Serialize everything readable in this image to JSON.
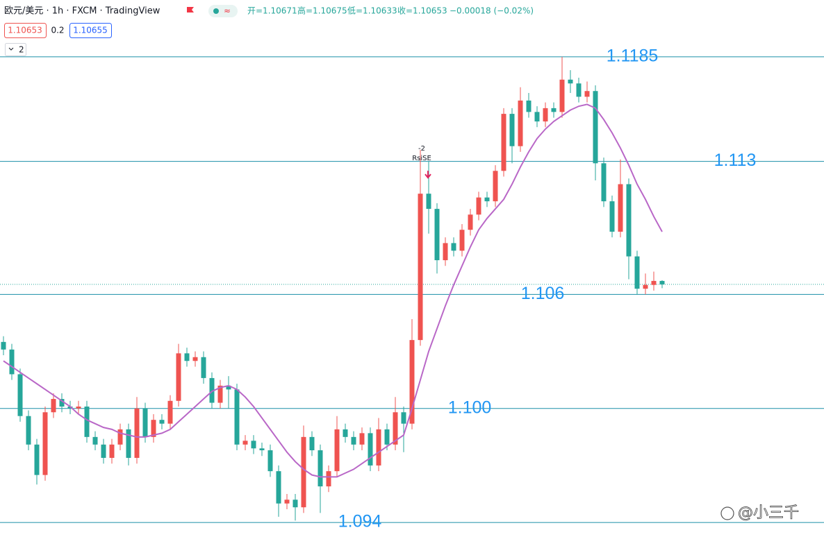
{
  "header": {
    "symbol": "欧元/美元 · 1h · FXCM · TradingView",
    "open": "开=1.10671",
    "high": "高=1.10675",
    "low": "低=1.10633",
    "close": "收=1.10653",
    "change": "−0.00018 (−0.02%)",
    "sell": "1.10653",
    "spread": "0.2",
    "buy": "1.10655",
    "pane": "2"
  },
  "chart_data": {
    "type": "candlestick",
    "up_color": "#ef5350",
    "down_color": "#26a69a",
    "ylim": [
      1.0928,
      1.1193
    ],
    "categories": [
      null,
      null,
      null,
      null,
      null,
      null,
      null,
      null,
      null,
      null,
      null,
      null,
      null,
      null,
      null,
      null,
      null,
      null,
      null,
      null,
      null,
      null,
      null,
      null,
      null,
      null,
      null,
      null,
      null,
      null,
      null,
      null,
      null,
      null,
      null,
      null,
      null,
      null,
      null,
      null,
      null,
      null,
      null,
      null,
      null,
      null,
      null,
      null,
      null,
      null,
      null,
      null,
      null,
      null,
      null,
      null,
      null,
      null,
      null,
      null,
      null,
      null,
      null,
      null,
      null,
      null,
      null,
      null,
      null,
      null,
      null,
      null,
      null,
      null,
      null,
      null,
      null,
      null,
      null,
      null
    ],
    "open": [
      1.1035,
      1.1031,
      1.1018,
      1.0996,
      1.0981,
      1.0965,
      1.0998,
      1.1005,
      1.1001,
      1.1,
      1.1001,
      1.0985,
      1.0981,
      1.0974,
      1.0981,
      1.0989,
      1.0974,
      1.1,
      1.0985,
      1.0994,
      1.0992,
      1.1004,
      1.1029,
      1.1025,
      1.1027,
      1.1016,
      1.1003,
      1.1012,
      1.101,
      1.0981,
      1.0983,
      1.0979,
      1.0978,
      1.0967,
      1.095,
      1.0952,
      1.0948,
      1.0985,
      1.0978,
      1.0959,
      1.0967,
      1.0989,
      1.0985,
      1.0981,
      1.0987,
      1.097,
      1.0989,
      1.0981,
      1.0998,
      1.0992,
      1.1036,
      1.1113,
      1.1105,
      1.1078,
      1.1087,
      1.1083,
      1.1094,
      1.1102,
      1.1111,
      1.1109,
      1.1125,
      1.1155,
      1.1138,
      1.1162,
      1.1156,
      1.1151,
      1.1158,
      1.1156,
      1.1173,
      1.1171,
      1.1164,
      1.1167,
      1.1129,
      1.1109,
      1.1093,
      1.1118,
      1.108,
      1.1063,
      1.1065,
      1.10671
    ],
    "high": [
      1.1038,
      1.1034,
      1.1021,
      1.0999,
      1.0984,
      1.1001,
      1.1008,
      1.1008,
      1.1004,
      1.1004,
      1.1004,
      1.0988,
      1.0984,
      1.0984,
      1.0992,
      1.0992,
      1.1006,
      1.1003,
      1.0997,
      1.0997,
      1.1007,
      1.1034,
      1.1032,
      1.103,
      1.103,
      1.1019,
      1.1015,
      1.1017,
      1.1013,
      1.0986,
      1.0986,
      1.0982,
      1.0981,
      1.097,
      1.0955,
      1.0955,
      1.0991,
      1.0988,
      1.0981,
      1.097,
      1.0996,
      1.0992,
      1.0988,
      1.099,
      1.099,
      1.0995,
      1.0992,
      1.1006,
      1.1001,
      1.1047,
      1.1136,
      1.113,
      1.1108,
      1.109,
      1.109,
      1.1097,
      1.1105,
      1.1114,
      1.1114,
      1.1128,
      1.1158,
      1.1158,
      1.1169,
      1.1166,
      1.1159,
      1.1161,
      1.1161,
      1.1185,
      1.1178,
      1.1174,
      1.1172,
      1.117,
      1.1132,
      1.1112,
      1.1131,
      1.1121,
      1.1083,
      1.1071,
      1.1072,
      1.10675
    ],
    "low": [
      1.1028,
      1.1015,
      1.0993,
      1.0978,
      1.096,
      1.0962,
      1.0995,
      1.0998,
      1.0997,
      1.0997,
      1.0982,
      1.0978,
      1.0971,
      1.0971,
      1.0978,
      1.097,
      1.0971,
      1.0982,
      1.0982,
      1.0989,
      1.0989,
      1.1001,
      1.1022,
      1.1022,
      1.1013,
      1.1,
      1.1,
      1.1,
      1.0978,
      1.0978,
      1.0976,
      1.0975,
      1.0964,
      1.0943,
      1.0947,
      1.0941,
      1.0945,
      1.0975,
      1.0945,
      1.0956,
      1.0964,
      1.0982,
      1.0978,
      1.0978,
      1.0967,
      1.0967,
      1.0978,
      1.0978,
      1.0977,
      1.0989,
      1.1033,
      1.1092,
      1.1071,
      1.1075,
      1.108,
      1.108,
      1.1091,
      1.1099,
      1.1106,
      1.1106,
      1.1122,
      1.1129,
      1.1135,
      1.1153,
      1.1148,
      1.1148,
      1.1153,
      1.1153,
      1.1166,
      1.1161,
      1.1161,
      1.112,
      1.1106,
      1.109,
      1.109,
      1.1068,
      1.106,
      1.106,
      1.1062,
      1.10633
    ],
    "close": [
      1.1031,
      1.1018,
      1.0996,
      1.0981,
      1.0965,
      1.0998,
      1.1005,
      1.1001,
      1.1,
      1.1001,
      1.0985,
      1.0981,
      1.0974,
      1.0981,
      1.0989,
      1.0974,
      1.1,
      1.0985,
      1.0994,
      1.0992,
      1.1004,
      1.1029,
      1.1025,
      1.1027,
      1.1016,
      1.1003,
      1.1012,
      1.101,
      1.0981,
      1.0983,
      1.0979,
      1.0978,
      1.0967,
      1.095,
      1.0952,
      1.0948,
      1.0985,
      1.0978,
      1.0959,
      1.0967,
      1.0989,
      1.0985,
      1.0981,
      1.0987,
      1.097,
      1.0989,
      1.0981,
      1.0998,
      1.0992,
      1.1036,
      1.1113,
      1.1105,
      1.1078,
      1.1087,
      1.1083,
      1.1094,
      1.1102,
      1.1111,
      1.1109,
      1.1125,
      1.1155,
      1.1138,
      1.1162,
      1.1156,
      1.1151,
      1.1158,
      1.1156,
      1.1173,
      1.1171,
      1.1164,
      1.1167,
      1.1129,
      1.1109,
      1.1093,
      1.1118,
      1.108,
      1.1063,
      1.1065,
      1.10671,
      1.10653
    ],
    "ma": {
      "color": "#b967c7",
      "values": [
        1.1025,
        1.1022,
        1.1019,
        1.1016,
        1.1013,
        1.101,
        1.1007,
        1.1004,
        1.1001,
        1.0997,
        1.0994,
        1.0992,
        1.099,
        1.0989,
        1.0987,
        1.0986,
        1.0985,
        1.0985,
        1.0986,
        1.0987,
        1.0989,
        1.0993,
        1.0997,
        1.1001,
        1.1005,
        1.1009,
        1.1011,
        1.1012,
        1.101,
        1.1006,
        1.1001,
        1.0995,
        1.0989,
        1.0983,
        1.0977,
        1.0972,
        1.0968,
        1.0965,
        1.0964,
        1.0964,
        1.0964,
        1.0966,
        1.0968,
        1.0971,
        1.0974,
        1.0977,
        1.098,
        1.0983,
        1.0986,
        1.1,
        1.1015,
        1.103,
        1.1042,
        1.1054,
        1.1065,
        1.1075,
        1.1085,
        1.1094,
        1.11,
        1.1105,
        1.111,
        1.1118,
        1.1127,
        1.1135,
        1.1142,
        1.1147,
        1.1151,
        1.1154,
        1.1157,
        1.1159,
        1.116,
        1.1158,
        1.1152,
        1.1145,
        1.1137,
        1.1128,
        1.1118,
        1.111,
        1.1101,
        1.1093
      ]
    },
    "levels": [
      {
        "value": 1.1185,
        "label": "1.1185"
      },
      {
        "value": 1.113,
        "label": "1.113"
      },
      {
        "value": 1.106,
        "label": "1.106"
      },
      {
        "value": 1.1,
        "label": "1.100"
      },
      {
        "value": 1.094,
        "label": "1.094"
      }
    ],
    "level_color": "#1a8fa8",
    "level_label_color": "#2196f3",
    "signal": {
      "index": 50,
      "count": "-2",
      "label": "RsiSE"
    },
    "watermark": "@小三千"
  }
}
